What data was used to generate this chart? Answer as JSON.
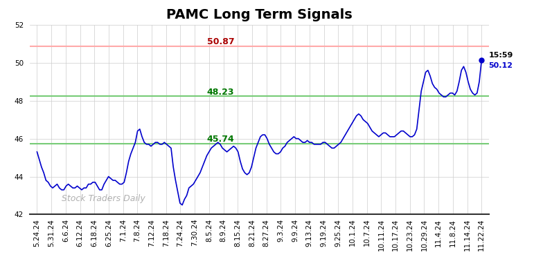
{
  "title": "PAMC Long Term Signals",
  "xlabels": [
    "5.24.24",
    "5.31.24",
    "6.6.24",
    "6.12.24",
    "6.18.24",
    "6.25.24",
    "7.1.24",
    "7.8.24",
    "7.12.24",
    "7.18.24",
    "7.24.24",
    "7.30.24",
    "8.5.24",
    "8.9.24",
    "8.15.24",
    "8.21.24",
    "8.27.24",
    "9.3.24",
    "9.9.24",
    "9.13.24",
    "9.19.24",
    "9.25.24",
    "10.1.24",
    "10.7.24",
    "10.11.24",
    "10.17.24",
    "10.23.24",
    "10.29.24",
    "11.4.24",
    "11.8.24",
    "11.14.24",
    "11.22.24"
  ],
  "y_values": [
    45.3,
    44.9,
    44.5,
    44.2,
    43.8,
    43.7,
    43.5,
    43.4,
    43.5,
    43.6,
    43.4,
    43.3,
    43.3,
    43.5,
    43.6,
    43.5,
    43.4,
    43.4,
    43.5,
    43.4,
    43.3,
    43.4,
    43.4,
    43.6,
    43.6,
    43.7,
    43.7,
    43.5,
    43.3,
    43.3,
    43.6,
    43.8,
    44.0,
    43.9,
    43.8,
    43.8,
    43.7,
    43.6,
    43.6,
    43.7,
    44.2,
    44.8,
    45.2,
    45.5,
    45.8,
    46.4,
    46.5,
    46.1,
    45.8,
    45.7,
    45.7,
    45.6,
    45.7,
    45.8,
    45.8,
    45.7,
    45.7,
    45.8,
    45.7,
    45.6,
    45.5,
    44.5,
    43.8,
    43.2,
    42.6,
    42.5,
    42.8,
    43.0,
    43.4,
    43.5,
    43.6,
    43.8,
    44.0,
    44.2,
    44.5,
    44.8,
    45.1,
    45.3,
    45.5,
    45.6,
    45.7,
    45.8,
    45.7,
    45.5,
    45.4,
    45.3,
    45.4,
    45.5,
    45.6,
    45.5,
    45.3,
    44.8,
    44.4,
    44.2,
    44.1,
    44.2,
    44.5,
    45.0,
    45.5,
    45.8,
    46.1,
    46.2,
    46.2,
    46.0,
    45.7,
    45.5,
    45.3,
    45.2,
    45.2,
    45.3,
    45.5,
    45.6,
    45.8,
    45.9,
    46.0,
    46.1,
    46.0,
    46.0,
    45.9,
    45.8,
    45.8,
    45.9,
    45.8,
    45.8,
    45.7,
    45.7,
    45.7,
    45.7,
    45.8,
    45.8,
    45.7,
    45.6,
    45.5,
    45.5,
    45.6,
    45.7,
    45.8,
    46.0,
    46.2,
    46.4,
    46.6,
    46.8,
    47.0,
    47.2,
    47.3,
    47.2,
    47.0,
    46.9,
    46.8,
    46.6,
    46.4,
    46.3,
    46.2,
    46.1,
    46.2,
    46.3,
    46.3,
    46.2,
    46.1,
    46.1,
    46.1,
    46.2,
    46.3,
    46.4,
    46.4,
    46.3,
    46.2,
    46.1,
    46.1,
    46.2,
    46.5,
    47.5,
    48.5,
    49.0,
    49.5,
    49.6,
    49.3,
    48.9,
    48.7,
    48.6,
    48.4,
    48.3,
    48.2,
    48.2,
    48.3,
    48.4,
    48.4,
    48.3,
    48.5,
    49.0,
    49.6,
    49.8,
    49.5,
    49.0,
    48.6,
    48.4,
    48.3,
    48.4,
    49.0,
    50.12
  ],
  "line_color": "#0000cc",
  "hline_red": 50.87,
  "hline_green1": 48.23,
  "hline_green2": 45.74,
  "hline_red_color": "#ffaaaa",
  "hline_green_color": "#77cc77",
  "annotation_red_text": "50.87",
  "annotation_red_color": "#aa0000",
  "annotation_green1_text": "48.23",
  "annotation_green1_color": "#007700",
  "annotation_green2_text": "45.74",
  "annotation_green2_color": "#007700",
  "last_price": 50.12,
  "last_time": "15:59",
  "last_dot_color": "#0000cc",
  "watermark": "Stock Traders Daily",
  "ylim": [
    42,
    52
  ],
  "yticks": [
    42,
    44,
    46,
    48,
    50,
    52
  ],
  "background_color": "#ffffff",
  "grid_color": "#cccccc",
  "title_fontsize": 14,
  "tick_fontsize": 7.5
}
